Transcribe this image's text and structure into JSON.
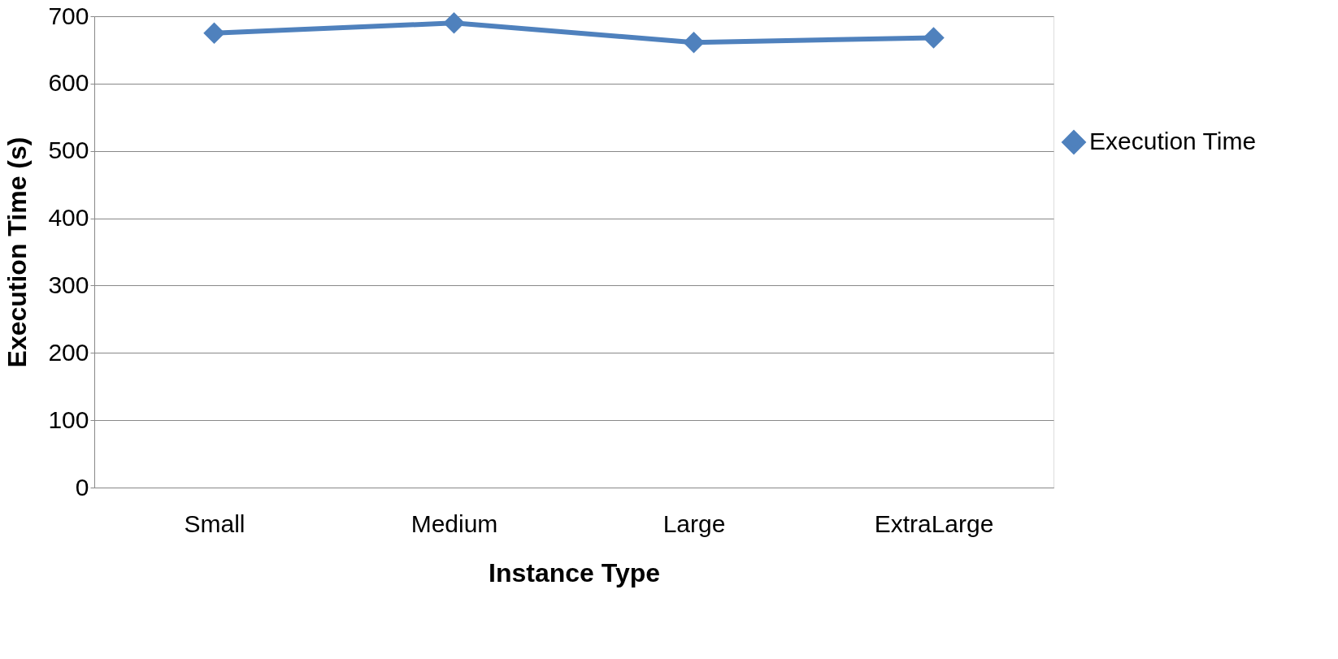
{
  "chart_data": {
    "type": "line",
    "xlabel": "Instance Type",
    "ylabel": "Execution Time (s)",
    "categories": [
      "Small",
      "Medium",
      "Large",
      "ExtraLarge"
    ],
    "series": [
      {
        "name": "Execution Time",
        "color": "#4f81bd",
        "values": [
          675,
          690,
          661,
          668
        ]
      }
    ],
    "ylim": [
      0,
      700
    ],
    "yticks": [
      0,
      100,
      200,
      300,
      400,
      500,
      600,
      700
    ],
    "grid": "y",
    "legend": "right",
    "marker": "diamond",
    "line_style": "solid"
  }
}
